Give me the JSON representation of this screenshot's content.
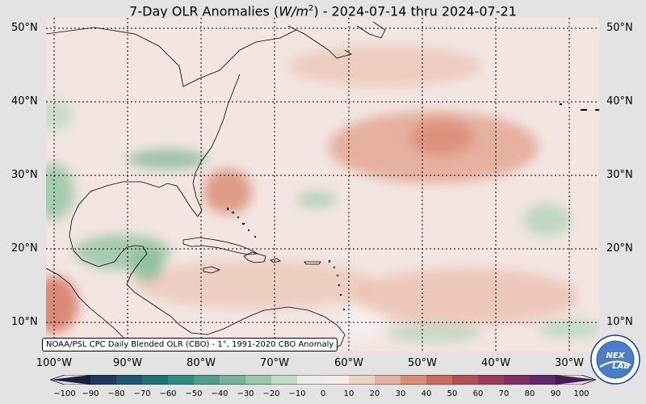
{
  "title": {
    "prefix": "7-Day OLR Anomalies (",
    "unit_base": "W/m",
    "unit_exp": "2",
    "suffix": ") - 2024-07-14 thru 2024-07-21"
  },
  "map": {
    "lat_labels": [
      "50°N",
      "40°N",
      "30°N",
      "20°N",
      "10°N"
    ],
    "lon_labels": [
      "100°W",
      "90°W",
      "80°W",
      "70°W",
      "60°W",
      "50°W",
      "40°W",
      "30°W"
    ],
    "source_text": "NOAA/PSL CPC Daily Blended OLR (CBO) - 1°, 1991-2020 CBO Anomaly"
  },
  "colorbar": {
    "ticks": [
      "−100",
      "−90",
      "−80",
      "−70",
      "−60",
      "−50",
      "−40",
      "−30",
      "−20",
      "−10",
      "0",
      "10",
      "20",
      "30",
      "40",
      "50",
      "60",
      "70",
      "80",
      "90",
      "100"
    ],
    "colors": [
      "#1a1f3d",
      "#1d3a5c",
      "#1e5570",
      "#1f7377",
      "#2e8c7d",
      "#4fa08a",
      "#74b497",
      "#9cc7a8",
      "#c4dcc4",
      "#e8eee8",
      "#f6ece9",
      "#f0d3c8",
      "#e5b09f",
      "#d98e7a",
      "#c96b5f",
      "#b64f55",
      "#9d3c5a",
      "#823063",
      "#65266a",
      "#451c55"
    ]
  },
  "logo": {
    "text": "NEXLAB",
    "ring_text": "NOAA PHYSICAL SCIENCES LABORATORY"
  }
}
